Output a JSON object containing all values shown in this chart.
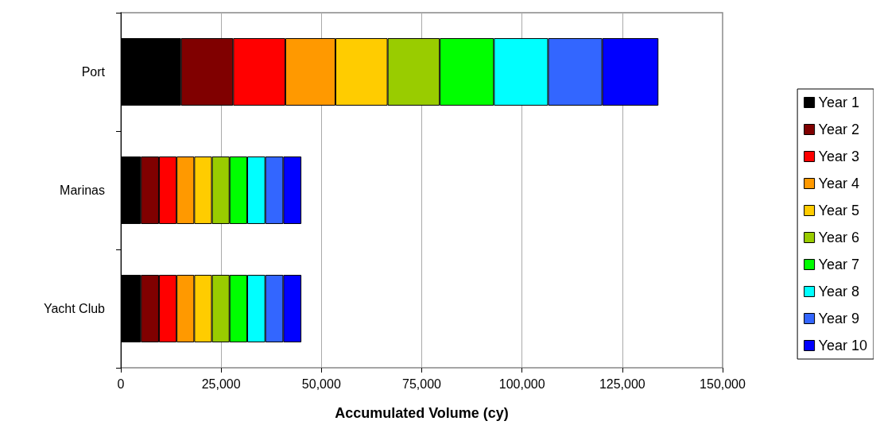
{
  "chart_data": {
    "type": "bar",
    "orientation": "horizontal",
    "stacked": true,
    "xlabel": "Accumulated Volume (cy)",
    "categories": [
      "Port",
      "Marinas",
      "Yacht Club"
    ],
    "series": [
      {
        "name": "Year 1",
        "color": "#000000",
        "values": [
          15000,
          5000,
          5000
        ]
      },
      {
        "name": "Year 2",
        "color": "#800000",
        "values": [
          13000,
          4500,
          4500
        ]
      },
      {
        "name": "Year 3",
        "color": "#ff0000",
        "values": [
          13000,
          4400,
          4400
        ]
      },
      {
        "name": "Year 4",
        "color": "#ff9900",
        "values": [
          12500,
          4400,
          4400
        ]
      },
      {
        "name": "Year 5",
        "color": "#ffcc00",
        "values": [
          13000,
          4400,
          4400
        ]
      },
      {
        "name": "Year 6",
        "color": "#99cc00",
        "values": [
          13000,
          4400,
          4400
        ]
      },
      {
        "name": "Year 7",
        "color": "#00ff00",
        "values": [
          13500,
          4400,
          4400
        ]
      },
      {
        "name": "Year 8",
        "color": "#00ffff",
        "values": [
          13500,
          4500,
          4500
        ]
      },
      {
        "name": "Year 9",
        "color": "#3366ff",
        "values": [
          13500,
          4500,
          4500
        ]
      },
      {
        "name": "Year 10",
        "color": "#0000ff",
        "values": [
          14000,
          4500,
          4500
        ]
      }
    ],
    "xlim": [
      0,
      150000
    ],
    "xticks": [
      0,
      {
        "value": 25000,
        "label": "25,000"
      },
      {
        "value": 50000,
        "label": "50,000"
      },
      {
        "value": 75000,
        "label": "75,000"
      },
      {
        "value": 100000,
        "label": "100,000"
      },
      {
        "value": 125000,
        "label": "125,000"
      },
      {
        "value": 150000,
        "label": "150,000"
      }
    ],
    "grid": "x",
    "legend": "right"
  }
}
